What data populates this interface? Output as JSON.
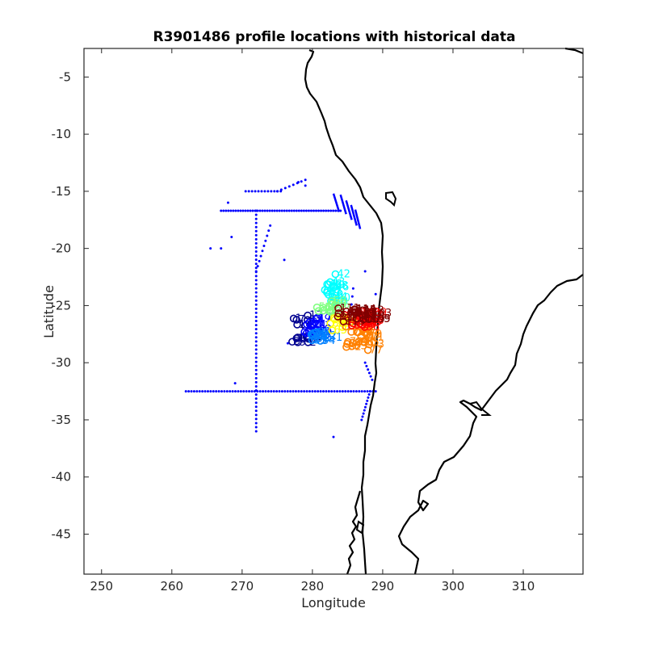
{
  "chart_data": {
    "type": "scatter",
    "title": "R3901486 profile locations with historical data",
    "xlabel": "Longitude",
    "ylabel": "Latitude",
    "xlim": [
      247.5,
      318.5
    ],
    "ylim": [
      -48.5,
      -2.5
    ],
    "xticks": [
      250,
      260,
      270,
      280,
      290,
      300,
      310
    ],
    "yticks": [
      -45,
      -40,
      -35,
      -30,
      -25,
      -20,
      -15,
      -10,
      -5
    ],
    "grid": false,
    "colors": {
      "historical": "#0000ff",
      "coastline": "#000000",
      "profile_colormap": [
        "#00008f",
        "#0000ff",
        "#0080ff",
        "#00ffff",
        "#80ff80",
        "#ffff00",
        "#ff8000",
        "#ff0000",
        "#800000"
      ]
    },
    "historical_points": {
      "lines": [
        {
          "lon_range": [
            262.0,
            289.0
          ],
          "lat": -32.5,
          "count": 70
        },
        {
          "lon_range": [
            267.0,
            284.0
          ],
          "lat": -16.7,
          "count": 50
        },
        {
          "lon_range": [
            270.5,
            275.5
          ],
          "lat": -15.0,
          "count": 12
        }
      ],
      "tracks": [
        {
          "lon": 272.0,
          "lat_range": [
            -36.0,
            -16.7
          ],
          "count": 55
        },
        {
          "from": [
            274.0,
            -18.0
          ],
          "to": [
            272.0,
            -22.0
          ],
          "count": 10
        },
        {
          "from": [
            275.0,
            -15.0
          ],
          "to": [
            279.0,
            -14.0
          ],
          "count": 8
        },
        {
          "from": [
            285.8,
            -23.5
          ],
          "to": [
            285.2,
            -27.0
          ],
          "count": 6
        },
        {
          "from": [
            287.5,
            -30.0
          ],
          "to": [
            288.5,
            -31.5
          ],
          "count": 6
        },
        {
          "from": [
            288.2,
            -32.5
          ],
          "to": [
            287.0,
            -35.0
          ],
          "count": 10
        }
      ],
      "segments": [
        {
          "from": [
            283.0,
            -15.2
          ],
          "to": [
            283.8,
            -16.8
          ]
        },
        {
          "from": [
            284.0,
            -15.3
          ],
          "to": [
            284.8,
            -17.0
          ]
        },
        {
          "from": [
            284.8,
            -15.8
          ],
          "to": [
            285.6,
            -17.5
          ]
        },
        {
          "from": [
            285.5,
            -16.2
          ],
          "to": [
            286.3,
            -18.0
          ]
        },
        {
          "from": [
            286.1,
            -16.6
          ],
          "to": [
            286.8,
            -18.3
          ]
        }
      ],
      "singles": [
        [
          268.0,
          -16.0
        ],
        [
          268.5,
          -19.0
        ],
        [
          265.5,
          -20.0
        ],
        [
          267.0,
          -20.0
        ],
        [
          269.0,
          -31.8
        ],
        [
          276.0,
          -21.0
        ],
        [
          276.5,
          -28.3
        ],
        [
          283.0,
          -36.5
        ],
        [
          287.5,
          -22.0
        ],
        [
          289.0,
          -24.0
        ],
        [
          279.0,
          -14.5
        ],
        [
          278.0,
          -14.2
        ]
      ]
    },
    "profile_clusters": [
      {
        "lon": 278.3,
        "lat": -27.0,
        "spread": [
          1.2,
          1.3
        ],
        "count": 14,
        "color_index": 0
      },
      {
        "lon": 279.5,
        "lat": -26.8,
        "spread": [
          1.2,
          0.8
        ],
        "count": 12,
        "color_index": 1
      },
      {
        "lon": 281.0,
        "lat": -27.6,
        "spread": [
          1.3,
          0.6
        ],
        "count": 10,
        "color_index": 2
      },
      {
        "lon": 282.5,
        "lat": -23.5,
        "spread": [
          1.0,
          1.3
        ],
        "count": 14,
        "color_index": 3
      },
      {
        "lon": 282.0,
        "lat": -25.1,
        "spread": [
          1.4,
          0.5
        ],
        "count": 10,
        "color_index": 4
      },
      {
        "lon": 283.5,
        "lat": -26.5,
        "spread": [
          1.0,
          0.7
        ],
        "count": 8,
        "color_index": 5
      },
      {
        "lon": 286.5,
        "lat": -27.8,
        "spread": [
          2.0,
          1.1
        ],
        "count": 18,
        "color_index": 6
      },
      {
        "lon": 286.5,
        "lat": -26.2,
        "spread": [
          2.0,
          0.7
        ],
        "count": 16,
        "color_index": 7
      },
      {
        "lon": 286.0,
        "lat": -25.8,
        "spread": [
          2.6,
          0.6
        ],
        "count": 18,
        "color_index": 8
      }
    ]
  }
}
